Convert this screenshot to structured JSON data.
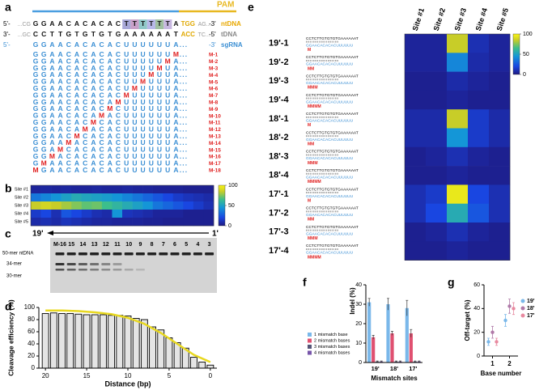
{
  "a": {
    "label": "a",
    "pam": "PAM",
    "ntDNA": {
      "prefix": "5'-",
      "up": "...CG",
      "seq": "GGAACACACACTTTTTTA",
      "pam": "TGG",
      "down": "AG...",
      "suffix": "-3'",
      "name": "ntDNA"
    },
    "tDNA": {
      "prefix": "3'-",
      "up": "...GC",
      "seq": "CCTTGTGTGTGAAAAAAT",
      "pam": "ACC",
      "down": "TC...",
      "suffix": "-5'",
      "name": "tDNA"
    },
    "sgRNA": {
      "prefix": "5'-",
      "seq": "GGAACACACACUUUUUUA...",
      "suffix": "-3'",
      "name": "sgRNA"
    },
    "rows": [
      {
        "seq": "GGAACACACACUUUUUUM...",
        "label": "M-1"
      },
      {
        "seq": "GGAACACACACUUUUUMA...",
        "label": "M-2"
      },
      {
        "seq": "GGAACACACACUUUUMUA...",
        "label": "M-3"
      },
      {
        "seq": "GGAACACACACUUUMUUA...",
        "label": "M-4"
      },
      {
        "seq": "GGAACACACACUUMUUUA...",
        "label": "M-5"
      },
      {
        "seq": "GGAACACACACUMUUUUA...",
        "label": "M-6"
      },
      {
        "seq": "GGAACACACACMUUUUUA...",
        "label": "M-7"
      },
      {
        "seq": "GGAACACACAMUUUUUUA...",
        "label": "M-8"
      },
      {
        "seq": "GGAACACACMCUUUUUUA...",
        "label": "M-9"
      },
      {
        "seq": "GGAACACAMACUUUUUUA...",
        "label": "M-10"
      },
      {
        "seq": "GGAACACMCACUUUUUUA...",
        "label": "M-11"
      },
      {
        "seq": "GGAACAMACACUUUUUUA...",
        "label": "M-12"
      },
      {
        "seq": "GGAACMCACACUUUUUUA...",
        "label": "M-13"
      },
      {
        "seq": "GGAAMACACACUUUUUUA...",
        "label": "M-14"
      },
      {
        "seq": "GGAMCACACACUUUUUUA...",
        "label": "M-15"
      },
      {
        "seq": "GGMACACACACUUUUUUA...",
        "label": "M-16"
      },
      {
        "seq": "GMAACACACACUUUUUUA...",
        "label": "M-17"
      },
      {
        "seq": "MGAACACACACUUUUUUA...",
        "label": "M-18"
      }
    ]
  },
  "b": {
    "label": "b",
    "sites": [
      "Site #1",
      "Site #2",
      "Site #3",
      "Site #4",
      "Site #5"
    ],
    "values": [
      [
        5,
        6,
        5,
        6,
        5,
        5,
        6,
        5,
        5,
        6,
        5,
        5,
        4,
        4,
        4,
        3,
        3,
        3
      ],
      [
        35,
        40,
        45,
        50,
        55,
        52,
        50,
        48,
        45,
        40,
        35,
        30,
        25,
        20,
        15,
        12,
        10,
        8
      ],
      [
        85,
        88,
        85,
        80,
        75,
        70,
        72,
        65,
        60,
        55,
        50,
        45,
        35,
        30,
        25,
        20,
        15,
        10
      ],
      [
        15,
        20,
        10,
        25,
        20,
        15,
        10,
        8,
        45,
        12,
        10,
        8,
        5,
        5,
        5,
        3,
        3,
        3
      ],
      [
        8,
        10,
        8,
        12,
        10,
        8,
        6,
        6,
        5,
        5,
        5,
        4,
        4,
        3,
        3,
        3,
        3,
        3
      ]
    ],
    "clim": [
      0,
      100
    ],
    "cticks": [
      0,
      50,
      100
    ]
  },
  "c": {
    "label": "c",
    "from": "19'",
    "to": "1'",
    "lanes": [
      "M-16",
      "15",
      "14",
      "13",
      "12",
      "11",
      "10",
      "9",
      "8",
      "7",
      "6",
      "5",
      "4",
      "3"
    ],
    "markers": [
      "50-mer ntDNA",
      "34-mer",
      "30-mer"
    ]
  },
  "d": {
    "label": "d",
    "type": "bar",
    "ylabel": "Cleavage efficiency (%)",
    "xlabel": "Distance (bp)",
    "x": [
      20,
      19,
      18,
      17,
      16,
      15,
      14,
      13,
      12,
      11,
      10,
      9,
      8,
      7,
      6,
      5,
      4,
      3,
      2,
      1,
      0
    ],
    "values": [
      90,
      91,
      90,
      90,
      89,
      88,
      88,
      88,
      87,
      87,
      86,
      82,
      80,
      68,
      63,
      50,
      42,
      33,
      18,
      10,
      5
    ],
    "fit_x": [
      20,
      18,
      16,
      14,
      12,
      10,
      8,
      6,
      4,
      2,
      0
    ],
    "fit": [
      95,
      95,
      94,
      92,
      89,
      83,
      73,
      58,
      40,
      22,
      10
    ],
    "color": "#e8d820",
    "xlim": [
      20.8,
      -0.8
    ],
    "ylim": [
      0,
      100
    ],
    "yticks": [
      0,
      20,
      40,
      60,
      80,
      100
    ],
    "xticks": [
      20,
      15,
      10,
      5,
      0
    ]
  },
  "e": {
    "label": "e",
    "sites": [
      "Site #1",
      "Site #2",
      "Site #3",
      "Site #4",
      "Site #5"
    ],
    "target": "CCTCTTGTGTGTGAAAAAAT",
    "guide": "GGAACACACACUUUUUU",
    "rows": [
      {
        "label": "19'-1",
        "mm": "M",
        "values": [
          5,
          5,
          85,
          10,
          5
        ]
      },
      {
        "label": "19'-2",
        "mm": "MM",
        "values": [
          5,
          5,
          40,
          8,
          5
        ]
      },
      {
        "label": "19'-3",
        "mm": "MMM",
        "values": [
          3,
          3,
          8,
          5,
          3
        ]
      },
      {
        "label": "19'-4",
        "mm": "MMMM",
        "values": [
          3,
          3,
          5,
          3,
          3
        ]
      },
      {
        "label": "18'-1",
        "mm": "M",
        "values": [
          8,
          8,
          85,
          15,
          8
        ]
      },
      {
        "label": "18'-2",
        "mm": "MM",
        "values": [
          8,
          8,
          45,
          15,
          8
        ]
      },
      {
        "label": "18'-3",
        "mm": "MMM",
        "values": [
          3,
          5,
          10,
          5,
          3
        ]
      },
      {
        "label": "18'-4",
        "mm": "MMMM",
        "values": [
          3,
          3,
          5,
          3,
          3
        ]
      },
      {
        "label": "17'-1",
        "mm": "M",
        "values": [
          10,
          15,
          95,
          20,
          10
        ]
      },
      {
        "label": "17'-2",
        "mm": "MM",
        "values": [
          10,
          20,
          55,
          25,
          10
        ]
      },
      {
        "label": "17'-3",
        "mm": "MMM",
        "values": [
          3,
          5,
          10,
          5,
          3
        ]
      },
      {
        "label": "17'-4",
        "mm": "MMMM",
        "values": [
          3,
          3,
          5,
          3,
          3
        ]
      }
    ],
    "clim": [
      0,
      100
    ],
    "cticks": [
      0,
      50,
      100
    ]
  },
  "f": {
    "label": "f",
    "type": "bar",
    "ylabel": "Indel (%)",
    "xlabel": "Mismatch sites",
    "categories": [
      "19'",
      "18'",
      "17'"
    ],
    "series": [
      {
        "name": "1 mismatch base",
        "color": "#7ab8ea",
        "values": [
          31,
          30,
          28
        ],
        "errors": [
          2,
          3,
          4
        ]
      },
      {
        "name": "2 mismatch bases",
        "color": "#e05070",
        "values": [
          13,
          15,
          15
        ],
        "errors": [
          1,
          1,
          2
        ]
      },
      {
        "name": "3 mismatch bases",
        "color": "#555577",
        "values": [
          0.5,
          0.5,
          0.5
        ],
        "errors": [
          0.3,
          0.3,
          0.3
        ]
      },
      {
        "name": "4 mismatch bases",
        "color": "#7755aa",
        "values": [
          0.5,
          0.5,
          0.5
        ],
        "errors": [
          0.3,
          0.3,
          0.3
        ]
      }
    ],
    "ylim": [
      0,
      40
    ],
    "yticks": [
      0,
      10,
      20,
      30,
      40
    ]
  },
  "g": {
    "label": "g",
    "type": "scatter",
    "ylabel": "Off-target (%)",
    "xlabel": "Base number",
    "x": [
      1,
      2
    ],
    "series": [
      {
        "name": "19'",
        "color": "#7ab8ea",
        "values": [
          12,
          30
        ],
        "errors": [
          3,
          5
        ]
      },
      {
        "name": "18'",
        "color": "#b07aa8",
        "values": [
          20,
          42
        ],
        "errors": [
          5,
          6
        ]
      },
      {
        "name": "17'",
        "color": "#e88aa0",
        "values": [
          12,
          40
        ],
        "errors": [
          3,
          5
        ]
      }
    ],
    "xlim": [
      0.5,
      2.5
    ],
    "xticks": [
      1,
      2
    ],
    "ylim": [
      0,
      60
    ],
    "yticks": [
      0,
      20,
      40,
      60
    ]
  }
}
